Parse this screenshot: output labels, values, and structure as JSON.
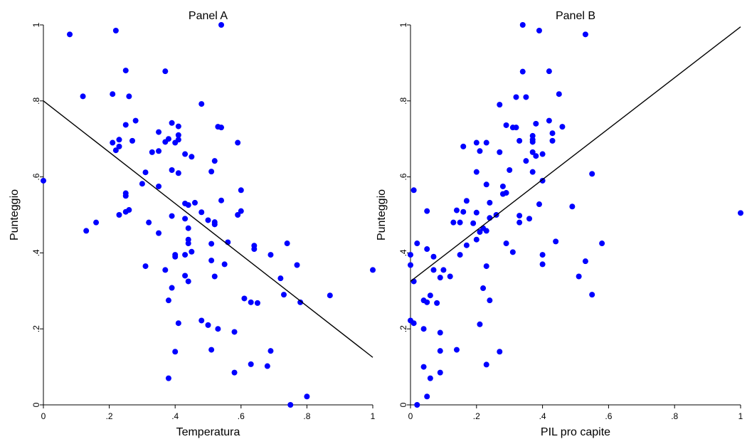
{
  "chart_data": [
    {
      "type": "scatter",
      "title": "Panel A",
      "xlabel": "Temperatura",
      "ylabel": "Punteggio",
      "xlim": [
        0,
        1
      ],
      "ylim": [
        0,
        1
      ],
      "xticks": [
        "0",
        ".2",
        ".4",
        ".6",
        ".8",
        "1"
      ],
      "yticks": [
        "0",
        ".2",
        ".4",
        ".6",
        ".8",
        "1"
      ],
      "grid": false,
      "point_color": "#0000ff",
      "points": [
        [
          0.0,
          0.59
        ],
        [
          0.08,
          0.975
        ],
        [
          0.12,
          0.812
        ],
        [
          0.13,
          0.458
        ],
        [
          0.16,
          0.48
        ],
        [
          0.21,
          0.818
        ],
        [
          0.21,
          0.69
        ],
        [
          0.22,
          0.985
        ],
        [
          0.22,
          0.67
        ],
        [
          0.23,
          0.698
        ],
        [
          0.23,
          0.68
        ],
        [
          0.23,
          0.5
        ],
        [
          0.25,
          0.88
        ],
        [
          0.25,
          0.737
        ],
        [
          0.25,
          0.557
        ],
        [
          0.25,
          0.55
        ],
        [
          0.25,
          0.508
        ],
        [
          0.26,
          0.812
        ],
        [
          0.26,
          0.513
        ],
        [
          0.27,
          0.695
        ],
        [
          0.28,
          0.748
        ],
        [
          0.3,
          0.582
        ],
        [
          0.31,
          0.612
        ],
        [
          0.31,
          0.365
        ],
        [
          0.32,
          0.48
        ],
        [
          0.33,
          0.665
        ],
        [
          0.35,
          0.718
        ],
        [
          0.35,
          0.668
        ],
        [
          0.35,
          0.575
        ],
        [
          0.35,
          0.452
        ],
        [
          0.37,
          0.878
        ],
        [
          0.37,
          0.692
        ],
        [
          0.37,
          0.355
        ],
        [
          0.38,
          0.7
        ],
        [
          0.38,
          0.275
        ],
        [
          0.38,
          0.07
        ],
        [
          0.39,
          0.742
        ],
        [
          0.39,
          0.618
        ],
        [
          0.39,
          0.497
        ],
        [
          0.39,
          0.308
        ],
        [
          0.4,
          0.69
        ],
        [
          0.4,
          0.395
        ],
        [
          0.4,
          0.39
        ],
        [
          0.4,
          0.14
        ],
        [
          0.41,
          0.733
        ],
        [
          0.41,
          0.71
        ],
        [
          0.41,
          0.698
        ],
        [
          0.41,
          0.61
        ],
        [
          0.41,
          0.215
        ],
        [
          0.43,
          0.66
        ],
        [
          0.43,
          0.53
        ],
        [
          0.43,
          0.49
        ],
        [
          0.43,
          0.395
        ],
        [
          0.43,
          0.34
        ],
        [
          0.44,
          0.526
        ],
        [
          0.44,
          0.465
        ],
        [
          0.44,
          0.435
        ],
        [
          0.44,
          0.425
        ],
        [
          0.44,
          0.325
        ],
        [
          0.45,
          0.653
        ],
        [
          0.45,
          0.403
        ],
        [
          0.46,
          0.532
        ],
        [
          0.48,
          0.792
        ],
        [
          0.48,
          0.507
        ],
        [
          0.48,
          0.222
        ],
        [
          0.5,
          0.486
        ],
        [
          0.5,
          0.21
        ],
        [
          0.51,
          0.614
        ],
        [
          0.51,
          0.424
        ],
        [
          0.51,
          0.38
        ],
        [
          0.51,
          0.145
        ],
        [
          0.52,
          0.642
        ],
        [
          0.52,
          0.481
        ],
        [
          0.52,
          0.475
        ],
        [
          0.52,
          0.338
        ],
        [
          0.53,
          0.732
        ],
        [
          0.53,
          0.2
        ],
        [
          0.54,
          0.73
        ],
        [
          0.54,
          0.538
        ],
        [
          0.55,
          0.37
        ],
        [
          0.56,
          0.428
        ],
        [
          0.58,
          0.192
        ],
        [
          0.58,
          0.085
        ],
        [
          0.59,
          0.69
        ],
        [
          0.59,
          0.5
        ],
        [
          0.6,
          0.565
        ],
        [
          0.6,
          0.51
        ],
        [
          0.61,
          0.28
        ],
        [
          0.63,
          0.27
        ],
        [
          0.63,
          0.107
        ],
        [
          0.64,
          0.419
        ],
        [
          0.64,
          0.41
        ],
        [
          0.65,
          0.268
        ],
        [
          0.68,
          0.102
        ],
        [
          0.69,
          0.395
        ],
        [
          0.69,
          0.142
        ],
        [
          0.72,
          0.333
        ],
        [
          0.73,
          0.29
        ],
        [
          0.74,
          0.425
        ],
        [
          0.75,
          0.0
        ],
        [
          0.77,
          0.368
        ],
        [
          0.78,
          0.27
        ],
        [
          0.8,
          0.022
        ],
        [
          0.87,
          0.288
        ],
        [
          1.0,
          0.355
        ],
        [
          0.54,
          1.0
        ]
      ],
      "fit_line": {
        "x": [
          0,
          1
        ],
        "y": [
          0.8,
          0.125
        ]
      }
    },
    {
      "type": "scatter",
      "title": "Panel B",
      "xlabel": "PIL pro capite",
      "ylabel": "Punteggio",
      "xlim": [
        0,
        1
      ],
      "ylim": [
        0,
        1
      ],
      "xticks": [
        "0",
        ".2",
        ".4",
        ".6",
        ".8",
        "1"
      ],
      "yticks": [
        "0",
        ".2",
        ".4",
        ".6",
        ".8",
        "1"
      ],
      "grid": false,
      "point_color": "#0000ff",
      "points": [
        [
          0.0,
          0.395
        ],
        [
          0.0,
          0.368
        ],
        [
          0.0,
          0.222
        ],
        [
          0.01,
          0.565
        ],
        [
          0.01,
          0.325
        ],
        [
          0.01,
          0.215
        ],
        [
          0.02,
          0.425
        ],
        [
          0.02,
          0.0
        ],
        [
          0.04,
          0.2
        ],
        [
          0.04,
          0.1
        ],
        [
          0.04,
          0.275
        ],
        [
          0.05,
          0.51
        ],
        [
          0.05,
          0.41
        ],
        [
          0.05,
          0.27
        ],
        [
          0.05,
          0.022
        ],
        [
          0.06,
          0.07
        ],
        [
          0.06,
          0.288
        ],
        [
          0.07,
          0.39
        ],
        [
          0.07,
          0.355
        ],
        [
          0.08,
          0.268
        ],
        [
          0.09,
          0.335
        ],
        [
          0.09,
          0.19
        ],
        [
          0.09,
          0.142
        ],
        [
          0.09,
          0.085
        ],
        [
          0.1,
          0.355
        ],
        [
          0.12,
          0.338
        ],
        [
          0.13,
          0.48
        ],
        [
          0.14,
          0.512
        ],
        [
          0.14,
          0.145
        ],
        [
          0.15,
          0.48
        ],
        [
          0.15,
          0.395
        ],
        [
          0.16,
          0.68
        ],
        [
          0.16,
          0.508
        ],
        [
          0.17,
          0.42
        ],
        [
          0.17,
          0.537
        ],
        [
          0.19,
          0.478
        ],
        [
          0.2,
          0.69
        ],
        [
          0.2,
          0.613
        ],
        [
          0.2,
          0.435
        ],
        [
          0.2,
          0.506
        ],
        [
          0.21,
          0.455
        ],
        [
          0.21,
          0.668
        ],
        [
          0.21,
          0.212
        ],
        [
          0.22,
          0.465
        ],
        [
          0.22,
          0.307
        ],
        [
          0.23,
          0.458
        ],
        [
          0.23,
          0.69
        ],
        [
          0.23,
          0.58
        ],
        [
          0.23,
          0.365
        ],
        [
          0.23,
          0.106
        ],
        [
          0.24,
          0.532
        ],
        [
          0.24,
          0.492
        ],
        [
          0.24,
          0.275
        ],
        [
          0.26,
          0.5
        ],
        [
          0.27,
          0.79
        ],
        [
          0.27,
          0.665
        ],
        [
          0.27,
          0.14
        ],
        [
          0.28,
          0.555
        ],
        [
          0.28,
          0.575
        ],
        [
          0.29,
          0.425
        ],
        [
          0.29,
          0.736
        ],
        [
          0.29,
          0.558
        ],
        [
          0.3,
          0.618
        ],
        [
          0.31,
          0.73
        ],
        [
          0.32,
          0.73
        ],
        [
          0.31,
          0.402
        ],
        [
          0.32,
          0.81
        ],
        [
          0.33,
          0.498
        ],
        [
          0.33,
          0.695
        ],
        [
          0.33,
          0.48
        ],
        [
          0.34,
          1.0
        ],
        [
          0.34,
          0.877
        ],
        [
          0.35,
          0.81
        ],
        [
          0.35,
          0.642
        ],
        [
          0.36,
          0.49
        ],
        [
          0.37,
          0.708
        ],
        [
          0.37,
          0.698
        ],
        [
          0.37,
          0.692
        ],
        [
          0.37,
          0.665
        ],
        [
          0.37,
          0.613
        ],
        [
          0.38,
          0.74
        ],
        [
          0.38,
          0.655
        ],
        [
          0.39,
          0.985
        ],
        [
          0.39,
          0.528
        ],
        [
          0.4,
          0.66
        ],
        [
          0.4,
          0.59
        ],
        [
          0.4,
          0.395
        ],
        [
          0.4,
          0.37
        ],
        [
          0.42,
          0.748
        ],
        [
          0.42,
          0.878
        ],
        [
          0.43,
          0.715
        ],
        [
          0.43,
          0.695
        ],
        [
          0.44,
          0.43
        ],
        [
          0.45,
          0.818
        ],
        [
          0.46,
          0.732
        ],
        [
          0.49,
          0.522
        ],
        [
          0.51,
          0.338
        ],
        [
          0.53,
          0.378
        ],
        [
          0.53,
          0.975
        ],
        [
          0.55,
          0.608
        ],
        [
          0.55,
          0.29
        ],
        [
          0.58,
          0.425
        ],
        [
          1.0,
          0.505
        ]
      ],
      "fit_line": {
        "x": [
          0,
          1
        ],
        "y": [
          0.325,
          0.995
        ]
      }
    }
  ]
}
